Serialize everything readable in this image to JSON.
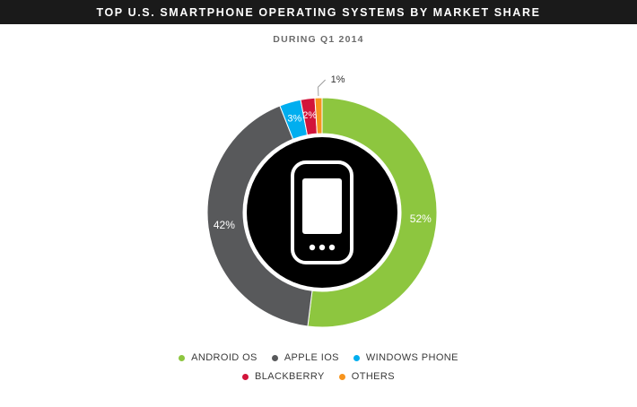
{
  "chart_data": {
    "type": "pie",
    "title": "TOP U.S. SMARTPHONE OPERATING SYSTEMS BY MARKET SHARE",
    "subtitle": "DURING Q1 2014",
    "center_icon": "smartphone-icon",
    "slices": [
      {
        "name": "ANDROID OS",
        "value": 52,
        "label": "52%",
        "color": "#8dc63f"
      },
      {
        "name": "APPLE IOS",
        "value": 42,
        "label": "42%",
        "color": "#58595b"
      },
      {
        "name": "WINDOWS PHONE",
        "value": 3,
        "label": "3%",
        "color": "#00aeef"
      },
      {
        "name": "BLACKBERRY",
        "value": 2,
        "label": "2%",
        "color": "#d2143a"
      },
      {
        "name": "OTHERS",
        "value": 1,
        "label": "1%",
        "color": "#f7941d"
      }
    ],
    "legend_position": "bottom"
  }
}
